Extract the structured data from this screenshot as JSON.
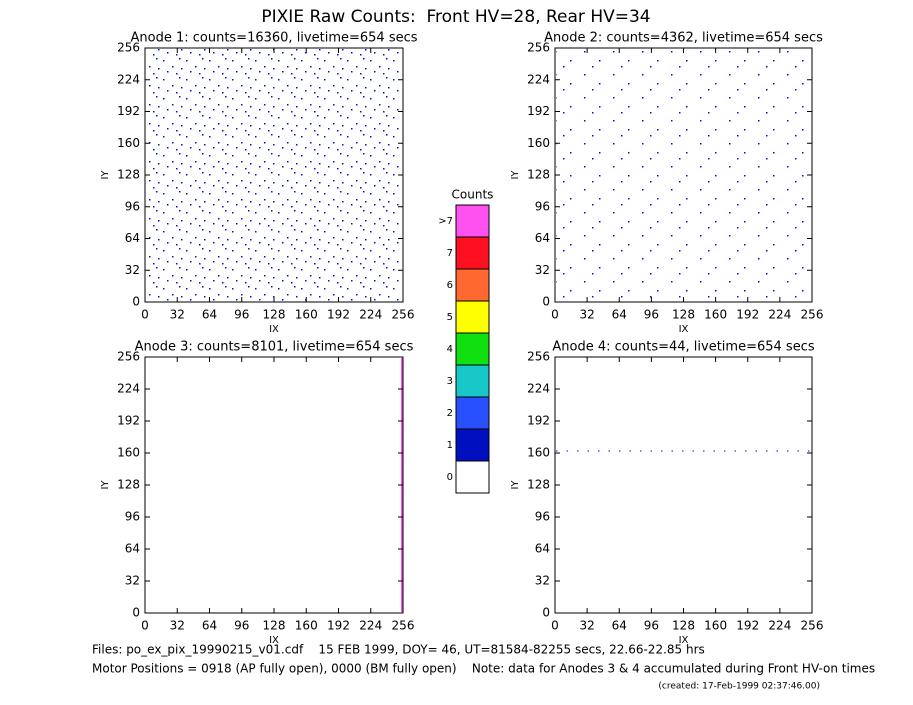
{
  "title": "PIXIE Raw Counts:  Front HV=28, Rear HV=34",
  "chart_data": [
    {
      "type": "image",
      "title": "Anode 1: counts=16360, livetime=654 secs",
      "xlabel": "IX",
      "ylabel": "IY",
      "xlim": [
        0,
        256
      ],
      "ylim": [
        0,
        256
      ],
      "xticks": [
        0,
        32,
        64,
        96,
        128,
        160,
        192,
        224,
        256
      ],
      "yticks": [
        0,
        32,
        64,
        96,
        128,
        160,
        192,
        224,
        256
      ]
    },
    {
      "type": "image",
      "title": "Anode 2: counts=4362, livetime=654 secs",
      "xlabel": "IX",
      "ylabel": "IY",
      "xlim": [
        0,
        256
      ],
      "ylim": [
        0,
        256
      ],
      "xticks": [
        0,
        32,
        64,
        96,
        128,
        160,
        192,
        224,
        256
      ],
      "yticks": [
        0,
        32,
        64,
        96,
        128,
        160,
        192,
        224,
        256
      ]
    },
    {
      "type": "image",
      "title": "Anode 3: counts=8101, livetime=654 secs",
      "xlabel": "IX",
      "ylabel": "IY",
      "xlim": [
        0,
        256
      ],
      "ylim": [
        0,
        256
      ],
      "xticks": [
        0,
        32,
        64,
        96,
        128,
        160,
        192,
        224,
        256
      ],
      "yticks": [
        0,
        32,
        64,
        96,
        128,
        160,
        192,
        224,
        256
      ]
    },
    {
      "type": "image",
      "title": "Anode 4: counts=44, livetime=654 secs",
      "xlabel": "IX",
      "ylabel": "IY",
      "xlim": [
        0,
        256
      ],
      "ylim": [
        0,
        256
      ],
      "xticks": [
        0,
        32,
        64,
        96,
        128,
        160,
        192,
        224,
        256
      ],
      "yticks": [
        0,
        32,
        64,
        96,
        128,
        160,
        192,
        224,
        256
      ]
    },
    {
      "type": "colorbar",
      "title": "Counts",
      "categories": [
        "0",
        "1",
        "2",
        "3",
        "4",
        "5",
        "6",
        "7",
        ">7"
      ],
      "colors": [
        "#ffffff",
        "#0010c0",
        "#2850ff",
        "#18c8c8",
        "#10e010",
        "#ffff00",
        "#ff6830",
        "#ff1020",
        "#ff50f0"
      ]
    }
  ],
  "footer": [
    "Files: po_ex_pix_19990215_v01.cdf    15 FEB 1999, DOY= 46, UT=81584-82255 secs, 22.66-22.85 hrs",
    "Motor Positions = 0918 (AP fully open), 0000 (BM fully open)    Note: data for Anodes 3 & 4 accumulated during Front HV-on times",
    "(created: 17-Feb-1999 02:37:46.00)"
  ]
}
